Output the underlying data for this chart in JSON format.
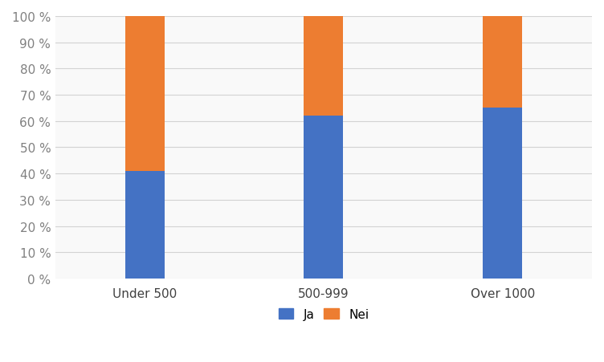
{
  "categories": [
    "Under 500",
    "500-999",
    "Over 1000"
  ],
  "ja_values": [
    0.41,
    0.62,
    0.65
  ],
  "nei_values": [
    0.59,
    0.38,
    0.35
  ],
  "ja_color": "#4472C4",
  "nei_color": "#ED7D31",
  "legend_labels": [
    "Ja",
    "Nei"
  ],
  "yticks": [
    0.0,
    0.1,
    0.2,
    0.3,
    0.4,
    0.5,
    0.6,
    0.7,
    0.8,
    0.9,
    1.0
  ],
  "ytick_labels": [
    "0 %",
    "10 %",
    "20 %",
    "30 %",
    "40 %",
    "50 %",
    "60 %",
    "70 %",
    "80 %",
    "90 %",
    "100 %"
  ],
  "bar_width": 0.22,
  "background_color": "#ffffff",
  "plot_bg_color": "#f9f9f9",
  "grid_color": "#d3d3d3",
  "legend_fontsize": 11,
  "tick_fontsize": 11,
  "ytick_color": "#808080",
  "xtick_color": "#404040"
}
